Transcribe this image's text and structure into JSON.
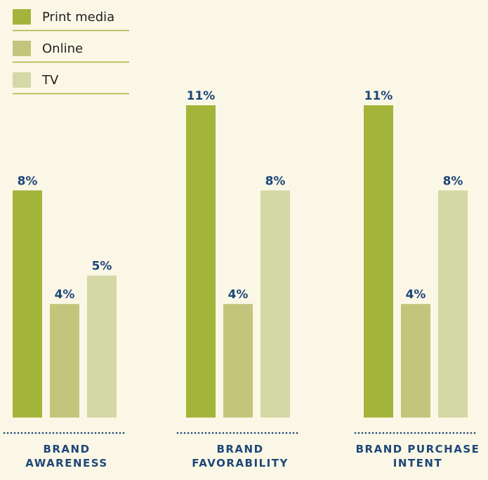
{
  "chart_data": {
    "type": "bar",
    "categories": [
      [
        "BRAND",
        "AWARENESS"
      ],
      [
        "BRAND",
        "FAVORABILITY"
      ],
      [
        "BRAND PURCHASE",
        "INTENT"
      ]
    ],
    "series": [
      {
        "name": "Print media",
        "values": [
          8,
          11,
          11
        ],
        "labels": [
          "8%",
          "11%",
          "11%"
        ],
        "color": "#a3b43b"
      },
      {
        "name": "Online",
        "values": [
          4,
          4,
          4
        ],
        "labels": [
          "4%",
          "4%",
          "4%"
        ],
        "color": "#c4c57c"
      },
      {
        "name": "TV",
        "values": [
          5,
          8,
          8
        ],
        "labels": [
          "5%",
          "8%",
          "8%"
        ],
        "color": "#d4d8a4"
      }
    ],
    "ylim": [
      0,
      11
    ],
    "legend_position": "top-left",
    "grid": false
  },
  "colors": {
    "background": "#fbf7e6",
    "label_text": "#1d4778",
    "legend_rule": "#a3b43b",
    "dotted_baseline": "#1d4778"
  }
}
